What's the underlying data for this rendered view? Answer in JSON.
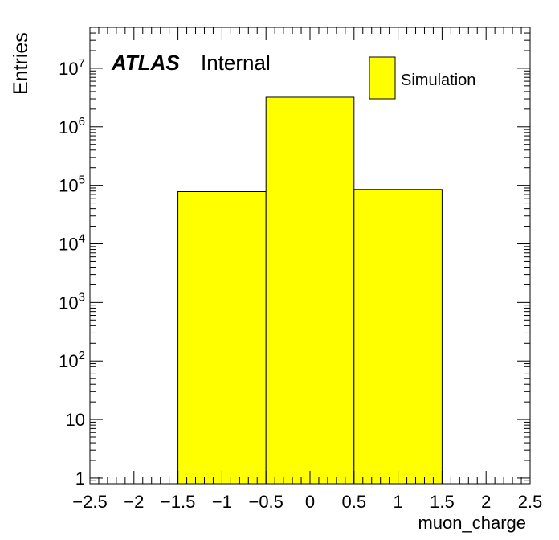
{
  "chart_data": {
    "type": "bar",
    "bins": [
      {
        "x_low": -1.5,
        "x_high": -0.5,
        "value": 78000
      },
      {
        "x_low": -0.5,
        "x_high": 0.5,
        "value": 3200000
      },
      {
        "x_low": 0.5,
        "x_high": 1.5,
        "value": 85000
      }
    ],
    "xlabel": "muon_charge",
    "ylabel": "Entries",
    "xlim": [
      -2.5,
      2.5
    ],
    "ylim": [
      0.8,
      50000000
    ],
    "y_scale": "log",
    "x_ticks": [
      {
        "value": -2.5,
        "label": "−2.5"
      },
      {
        "value": -2,
        "label": "−2"
      },
      {
        "value": -1.5,
        "label": "−1.5"
      },
      {
        "value": -1,
        "label": "−1"
      },
      {
        "value": -0.5,
        "label": "−0.5"
      },
      {
        "value": 0,
        "label": "0"
      },
      {
        "value": 0.5,
        "label": "0.5"
      },
      {
        "value": 1,
        "label": "1"
      },
      {
        "value": 1.5,
        "label": "1.5"
      },
      {
        "value": 2,
        "label": "2"
      },
      {
        "value": 2.5,
        "label": "2.5"
      }
    ],
    "y_ticks": [
      {
        "value": 1,
        "base": "1",
        "exp": ""
      },
      {
        "value": 10,
        "base": "10",
        "exp": ""
      },
      {
        "value": 100,
        "base": "10",
        "exp": "2"
      },
      {
        "value": 1000,
        "base": "10",
        "exp": "3"
      },
      {
        "value": 10000,
        "base": "10",
        "exp": "4"
      },
      {
        "value": 100000,
        "base": "10",
        "exp": "5"
      },
      {
        "value": 1000000,
        "base": "10",
        "exp": "6"
      },
      {
        "value": 10000000,
        "base": "10",
        "exp": "7"
      }
    ],
    "legend": {
      "label": "Simulation",
      "placement": "top-right"
    },
    "annotation": {
      "experiment": "ATLAS",
      "status": "Internal"
    },
    "colors": {
      "fill": "#ffff00",
      "line": "#000000"
    },
    "grid": false
  }
}
